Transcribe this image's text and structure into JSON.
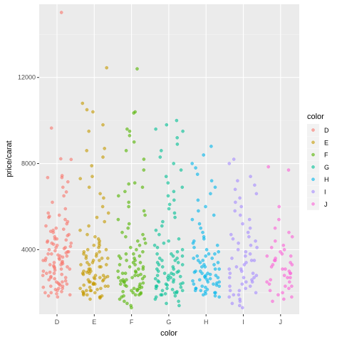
{
  "chart_data": {
    "type": "scatter",
    "xlabel": "color",
    "ylabel": "price/carat",
    "categories": [
      "D",
      "E",
      "F",
      "G",
      "H",
      "I",
      "J"
    ],
    "y_ticks": [
      4000,
      8000,
      12000
    ],
    "ylim": [
      1000,
      15400
    ],
    "grid": true,
    "jitter": true,
    "legend": {
      "title": "color",
      "position": "right",
      "entries": [
        "D",
        "E",
        "F",
        "G",
        "H",
        "I",
        "J"
      ]
    },
    "colors": {
      "D": "#F8766D",
      "E": "#C49A00",
      "F": "#53B400",
      "G": "#00C094",
      "H": "#00B6EB",
      "I": "#A58AFF",
      "J": "#FB61D7"
    },
    "series": [
      {
        "name": "D",
        "values": [
          15020,
          9650,
          8220,
          8190,
          7440,
          7350,
          7350,
          7150,
          6900,
          6680,
          6500,
          6200,
          5900,
          5700,
          5600,
          5550,
          5500,
          5400,
          5300,
          5200,
          5100,
          5000,
          4950,
          4900,
          4850,
          4800,
          4700,
          4650,
          4600,
          4500,
          4450,
          4400,
          4350,
          4300,
          4250,
          4200,
          4150,
          4100,
          4050,
          4000,
          3950,
          3900,
          3850,
          3800,
          3750,
          3700,
          3650,
          3600,
          3550,
          3500,
          3450,
          3400,
          3350,
          3300,
          3250,
          3200,
          3150,
          3100,
          3050,
          3000,
          2950,
          2900,
          2850,
          2800,
          2750,
          2700,
          2650,
          2600,
          2550,
          2500,
          2450,
          2400,
          2350,
          2300,
          2250,
          2200,
          2150,
          2100,
          2050,
          2000,
          1950,
          1900,
          1850,
          1800,
          3900,
          3700,
          3500,
          3300,
          3100,
          2900,
          2700,
          2500,
          2300,
          4100,
          4300,
          4500,
          3800,
          3600,
          3400,
          3200,
          2400,
          2200,
          2000
        ]
      },
      {
        "name": "E",
        "values": [
          12450,
          10800,
          10500,
          10400,
          9800,
          9500,
          8700,
          8600,
          8300,
          7900,
          7400,
          7300,
          6900,
          6600,
          6400,
          6000,
          5700,
          5500,
          5300,
          5100,
          4900,
          4700,
          4600,
          4500,
          4400,
          4300,
          4200,
          4100,
          4000,
          3900,
          3800,
          3700,
          3600,
          3500,
          3400,
          3300,
          3200,
          3100,
          3000,
          2950,
          2900,
          2850,
          2800,
          2750,
          2700,
          2650,
          2600,
          2550,
          2500,
          2450,
          2400,
          2350,
          2300,
          2250,
          2200,
          2150,
          2100,
          2050,
          2000,
          1950,
          1900,
          1850,
          1800,
          1750,
          1700,
          3700,
          3500,
          3300,
          3100,
          2900,
          2700,
          2500,
          2300,
          2100,
          1900,
          3800,
          3600,
          3400,
          3200,
          3000,
          2800,
          2600,
          2400,
          2200,
          2000,
          1800,
          4200,
          4000,
          3900,
          3600,
          3300,
          3000,
          2700,
          2400,
          2100
        ]
      },
      {
        "name": "F",
        "values": [
          12400,
          10400,
          10350,
          9600,
          9500,
          9300,
          9000,
          8600,
          8200,
          7700,
          7100,
          7050,
          6900,
          6700,
          6500,
          6200,
          6000,
          5800,
          5600,
          5400,
          5200,
          5000,
          4800,
          4700,
          4600,
          4500,
          4400,
          4300,
          4200,
          4100,
          4000,
          3900,
          3800,
          3700,
          3600,
          3500,
          3400,
          3300,
          3200,
          3100,
          3000,
          2950,
          2900,
          2850,
          2800,
          2750,
          2700,
          2650,
          2600,
          2550,
          2500,
          2450,
          2400,
          2350,
          2300,
          2250,
          2200,
          2150,
          2100,
          2050,
          2000,
          1950,
          1900,
          1850,
          1800,
          1700,
          1600,
          1500,
          1400,
          1300,
          3700,
          3500,
          3300,
          3100,
          2900,
          2700,
          2500,
          2300,
          2100,
          1900,
          3800,
          3600,
          3400,
          3200,
          3000,
          2800,
          2600,
          2400,
          2200,
          2000
        ]
      },
      {
        "name": "G",
        "values": [
          10000,
          9800,
          9600,
          9500,
          9200,
          8900,
          8600,
          8300,
          8000,
          7700,
          7400,
          7100,
          6900,
          6700,
          6500,
          6300,
          6100,
          5900,
          5700,
          5500,
          5300,
          5100,
          4900,
          4700,
          4500,
          4400,
          4300,
          4200,
          4100,
          4000,
          3900,
          3800,
          3700,
          3600,
          3500,
          3400,
          3300,
          3200,
          3100,
          3000,
          2950,
          2900,
          2850,
          2800,
          2750,
          2700,
          2650,
          2600,
          2550,
          2500,
          2450,
          2400,
          2350,
          2300,
          2250,
          2200,
          2150,
          2100,
          2050,
          2000,
          1950,
          1900,
          1850,
          1800,
          1700,
          1600,
          1500,
          1400,
          3700,
          3500,
          3300,
          3100,
          2900,
          2700,
          2500,
          2300,
          2100,
          1900,
          3800,
          3600,
          3400,
          3200,
          3000,
          2800,
          2600,
          2400,
          2200,
          2000
        ]
      },
      {
        "name": "H",
        "values": [
          8800,
          8400,
          8000,
          7800,
          7500,
          7200,
          6900,
          6600,
          6300,
          6000,
          5800,
          5600,
          5400,
          5200,
          5000,
          4800,
          4600,
          4500,
          4400,
          4300,
          4200,
          4100,
          4000,
          3900,
          3800,
          3700,
          3600,
          3500,
          3400,
          3300,
          3200,
          3100,
          3000,
          2950,
          2900,
          2850,
          2800,
          2750,
          2700,
          2650,
          2600,
          2550,
          2500,
          2450,
          2400,
          2350,
          2300,
          2250,
          2200,
          2150,
          2100,
          2050,
          2000,
          1950,
          1900,
          1850,
          1800,
          3700,
          3500,
          3300,
          3100,
          2900,
          2700,
          2500,
          2300,
          2100,
          3800,
          3600,
          3400,
          3200,
          3000,
          2800,
          2600,
          2400,
          2200,
          2000
        ]
      },
      {
        "name": "I",
        "values": [
          8200,
          8000,
          7400,
          7200,
          7000,
          6800,
          6600,
          6400,
          6200,
          6000,
          5800,
          5600,
          5400,
          5200,
          5000,
          4800,
          4600,
          4400,
          4200,
          4000,
          3800,
          3600,
          3400,
          3200,
          3000,
          2900,
          2800,
          2700,
          2600,
          2500,
          2400,
          2300,
          2200,
          2100,
          2000,
          1900,
          1800,
          1700,
          1600,
          1500,
          1400,
          1300,
          3700,
          3500,
          3300,
          3100,
          2900,
          2700,
          2500,
          2300,
          2100,
          1900,
          4700,
          4500,
          4300,
          4100,
          3900,
          3500,
          3100,
          2700
        ]
      },
      {
        "name": "J",
        "values": [
          7850,
          7700,
          6000,
          5400,
          5000,
          4800,
          4600,
          4400,
          4200,
          4100,
          4000,
          3900,
          3800,
          3700,
          3600,
          3500,
          3400,
          3300,
          3200,
          3100,
          3000,
          2900,
          2800,
          2700,
          2600,
          2500,
          2400,
          2300,
          2200,
          2100,
          2000,
          1900,
          1800,
          1700,
          1600,
          3700,
          3500,
          3300,
          3100,
          2900,
          2700,
          2500,
          2300
        ]
      }
    ]
  }
}
